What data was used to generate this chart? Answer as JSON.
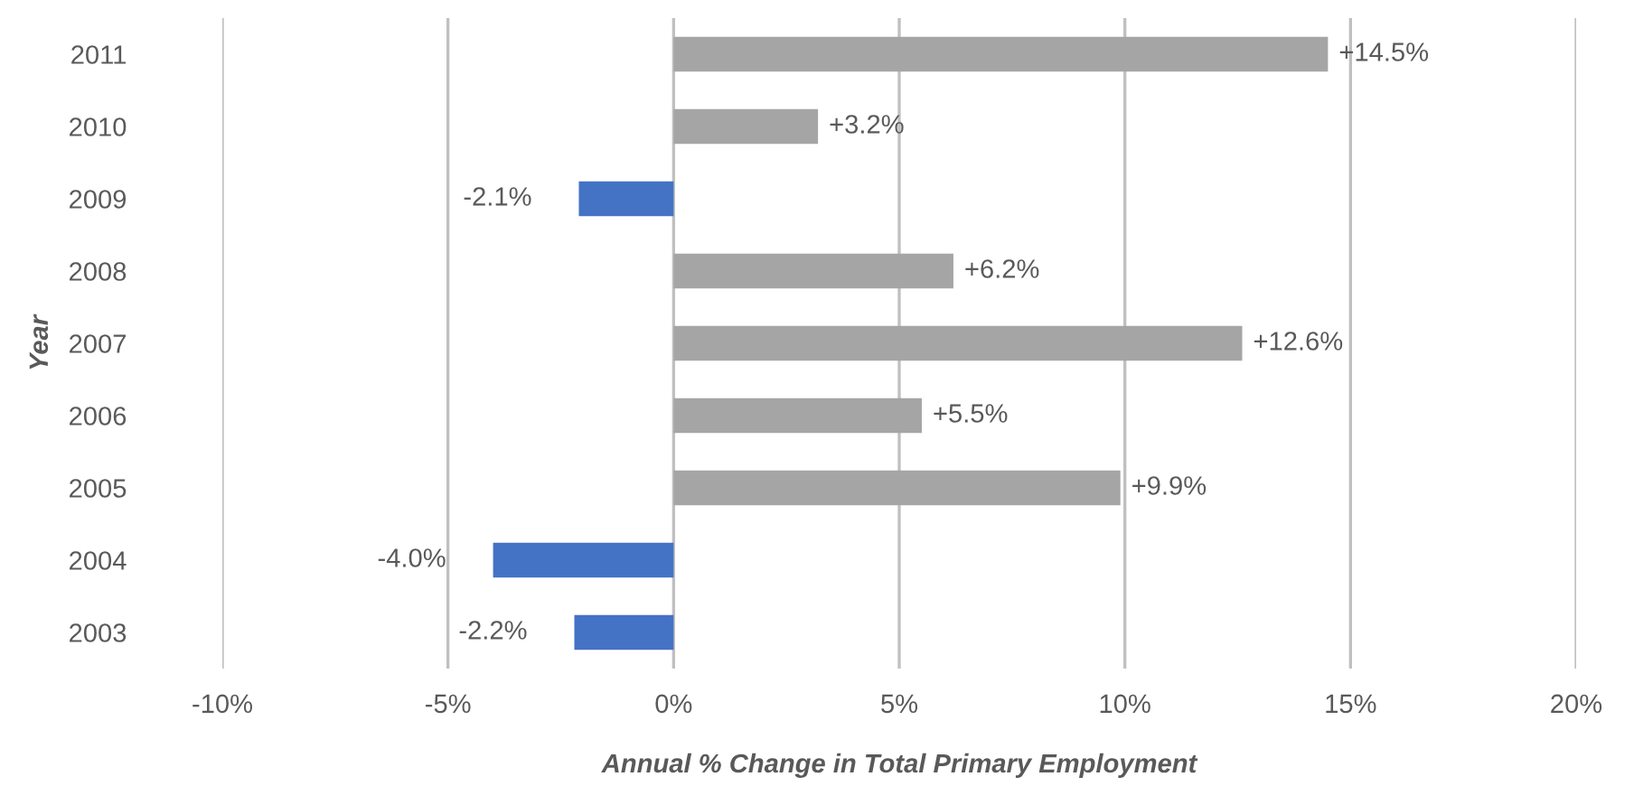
{
  "chart_data": {
    "type": "bar",
    "orientation": "horizontal",
    "xlabel": "Annual % Change in Total Primary Employment",
    "ylabel": "Year",
    "categories": [
      "2011",
      "2010",
      "2009",
      "2008",
      "2007",
      "2006",
      "2005",
      "2004",
      "2003"
    ],
    "values": [
      14.5,
      3.2,
      -2.1,
      6.2,
      12.6,
      5.5,
      9.9,
      -4.0,
      -2.2
    ],
    "colors": [
      "#a5a5a5",
      "#a5a5a5",
      "#4472c4",
      "#a5a5a5",
      "#a5a5a5",
      "#a5a5a5",
      "#a5a5a5",
      "#4472c4",
      "#4472c4"
    ],
    "value_labels": [
      "+14.5%",
      "+3.2%",
      "-2.1%",
      "+6.2%",
      "+12.6%",
      "+5.5%",
      "+9.9%",
      "-4.0%",
      "-2.2%"
    ],
    "xlim": [
      -10,
      20
    ],
    "xticks": [
      {
        "value": -10,
        "label": "-10%"
      },
      {
        "value": -5,
        "label": "-5%"
      },
      {
        "value": 0,
        "label": "0%"
      },
      {
        "value": 5,
        "label": "5%"
      },
      {
        "value": 10,
        "label": "10%"
      },
      {
        "value": 15,
        "label": "15%"
      },
      {
        "value": 20,
        "label": "20%"
      }
    ],
    "grid": "x",
    "legend": false
  }
}
